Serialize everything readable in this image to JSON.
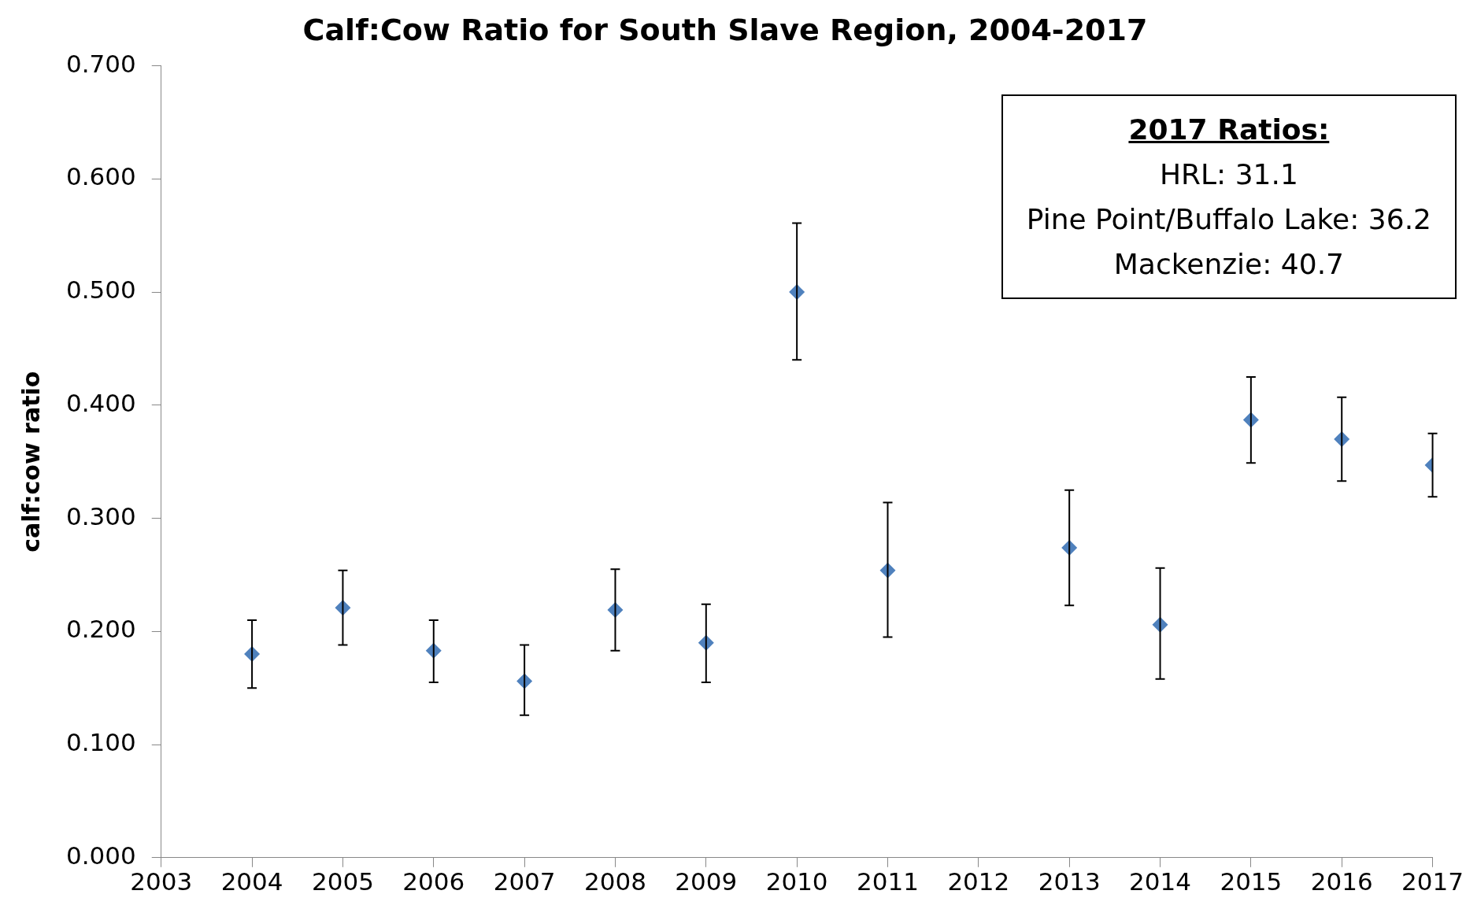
{
  "chart_data": {
    "type": "scatter",
    "title": "Calf:Cow Ratio for South Slave Region, 2004-2017",
    "ylabel": "calf:cow ratio",
    "annotations": [
      "2017 Ratios:",
      "HRL: 31.1",
      "Pine Point/Buffalo Lake: 36.2",
      "Mackenzie: 40.7"
    ],
    "x": [
      2004,
      2005,
      2006,
      2007,
      2008,
      2009,
      2010,
      2011,
      2013,
      2014,
      2015,
      2016,
      2017
    ],
    "values": [
      0.18,
      0.221,
      0.183,
      0.156,
      0.219,
      0.19,
      0.5,
      0.254,
      0.274,
      0.206,
      0.387,
      0.37,
      0.347
    ],
    "errors": [
      [
        0.15,
        0.21
      ],
      [
        0.188,
        0.254
      ],
      [
        0.155,
        0.21
      ],
      [
        0.126,
        0.188
      ],
      [
        0.183,
        0.255
      ],
      [
        0.155,
        0.224
      ],
      [
        0.44,
        0.561
      ],
      [
        0.195,
        0.314
      ],
      [
        0.223,
        0.325
      ],
      [
        0.158,
        0.256
      ],
      [
        0.349,
        0.425
      ],
      [
        0.333,
        0.407
      ],
      [
        0.319,
        0.375
      ]
    ],
    "color": "#4f81bd",
    "marker": "diamond",
    "grid": false,
    "legend": false,
    "xlim": [
      2003,
      2017
    ],
    "xticks": [
      2003,
      2004,
      2005,
      2006,
      2007,
      2008,
      2009,
      2010,
      2011,
      2012,
      2013,
      2014,
      2015,
      2016,
      2017
    ],
    "ylim": [
      0,
      0.7
    ],
    "yticks": [
      {
        "value": 0,
        "label": "0.000"
      },
      {
        "value": 0.1,
        "label": "0.100"
      },
      {
        "value": 0.2,
        "label": "0.200"
      },
      {
        "value": 0.3,
        "label": "0.300"
      },
      {
        "value": 0.4,
        "label": "0.400"
      },
      {
        "value": 0.5,
        "label": "0.500"
      },
      {
        "value": 0.6,
        "label": "0.600"
      },
      {
        "value": 0.7,
        "label": "0.700"
      }
    ]
  }
}
